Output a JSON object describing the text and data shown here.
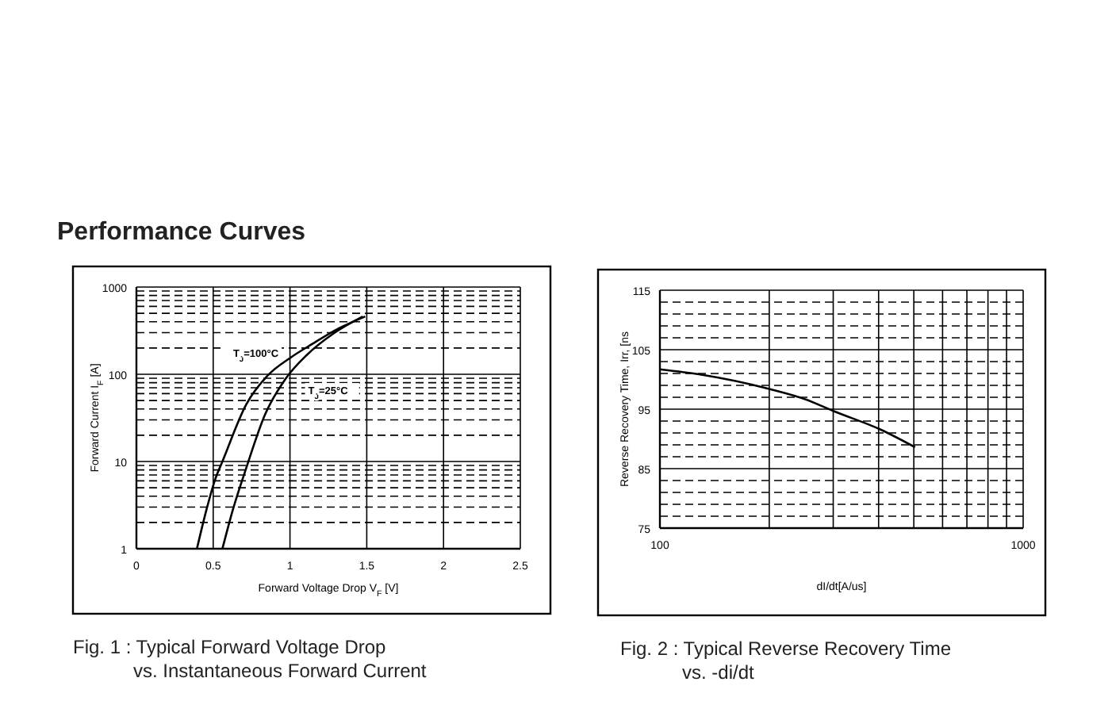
{
  "chart_data": [
    {
      "type": "line",
      "title": "Performance Curves",
      "xlabel": "Forward Voltage Drop V$_{F}$ [V]",
      "ylabel": "Forward Current I$_{F}$ [A]",
      "log": "y",
      "xlim": [
        0,
        2.5
      ],
      "xticks": [
        0,
        0.5,
        1,
        1.5,
        2,
        2.5
      ],
      "ylim": [
        1,
        1000
      ],
      "yticks": [
        1,
        10,
        100,
        1000
      ],
      "grid": true,
      "annotations": [
        "Fig. 1 : Typical Forward Voltage Drop",
        "vs. Instantaneous Forward Current"
      ],
      "series": [
        {
          "name": "T$_{J}$=100°C",
          "color": "#000000",
          "x": [
            0.394,
            0.456,
            0.515,
            0.56,
            0.715,
            0.853,
            1.008,
            1.146,
            1.32,
            1.49
          ],
          "values": [
            1,
            2.8,
            6.4,
            10,
            45,
            96,
            157,
            223,
            337,
            460
          ]
        },
        {
          "name": "T$_{J}$=25°C",
          "color": "#000000",
          "x": [
            0.56,
            0.628,
            0.715,
            0.836,
            0.974,
            1.112,
            1.284,
            1.474
          ],
          "values": [
            1,
            2.8,
            8.4,
            34,
            90,
            168,
            294,
            460
          ]
        }
      ]
    },
    {
      "type": "line",
      "xlabel": "dI/dt[A/us]",
      "ylabel": "Reverse Recovery Time, Irr, [ns",
      "log": "x",
      "xlim": [
        100,
        1000
      ],
      "xticks": [
        100,
        1000
      ],
      "ylim": [
        75,
        115
      ],
      "yticks": [
        75,
        85,
        95,
        105,
        115
      ],
      "grid": true,
      "annotations": [
        "Fig. 2 : Typical Reverse Recovery Time",
        "vs. -di/dt"
      ],
      "series": [
        {
          "color": "#000000",
          "x": [
            100,
            130,
            200,
            253,
            300,
            404,
            504
          ],
          "values": [
            101.7,
            100.8,
            98.4,
            96.6,
            94.7,
            91.6,
            88.6
          ]
        }
      ]
    }
  ]
}
